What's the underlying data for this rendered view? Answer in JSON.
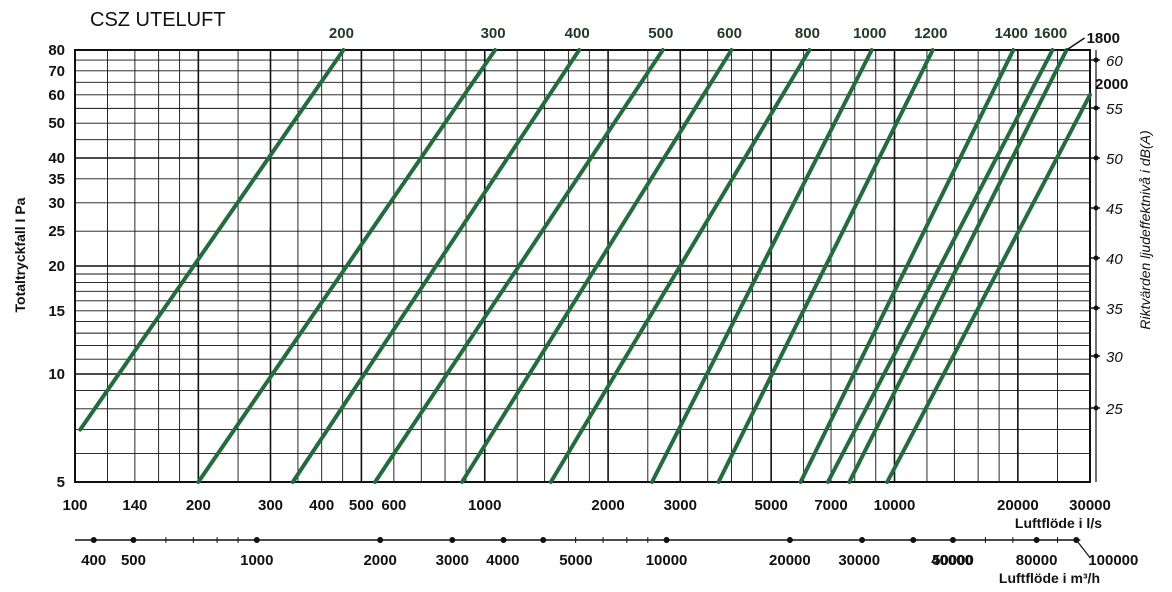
{
  "chart_data": {
    "type": "line",
    "title": "CSZ UTELUFT",
    "xlabel": "Luftflöde i l/s",
    "ylabel": "Totaltryckfall I Pa",
    "y2label": "Riktvärden ljudeffektnivå i dB(A)",
    "x2label": "Luftflöde i m³/h",
    "xscale": "log",
    "yscale": "log",
    "xlim": [
      100,
      30000
    ],
    "ylim": [
      5,
      80
    ],
    "grid": true,
    "x_ticks": [
      "100",
      "140",
      "200",
      "300",
      "400",
      "500",
      "600",
      "1000",
      "2000",
      "3000",
      "5000",
      "7000",
      "10000",
      "20000",
      "30000"
    ],
    "y_ticks": [
      "5",
      "10",
      "15",
      "20",
      "25",
      "30",
      "35",
      "40",
      "50",
      "60",
      "70",
      "80"
    ],
    "x2_ticks": [
      "400",
      "500",
      "1000",
      "2000",
      "3000",
      "4000",
      "5000",
      "10000",
      "20000",
      "30000",
      "40000",
      "50000",
      "80000",
      "100000"
    ],
    "db_ticks": [
      "60",
      "55",
      "50",
      "45",
      "40",
      "35",
      "30",
      "25"
    ],
    "line_color": "#1f6e3c",
    "series": [
      {
        "name": "200",
        "points": [
          [
            103,
            7
          ],
          [
            452,
            80
          ]
        ]
      },
      {
        "name": "300",
        "points": [
          [
            200,
            5
          ],
          [
            1060,
            80
          ]
        ]
      },
      {
        "name": "400",
        "points": [
          [
            340,
            5
          ],
          [
            1700,
            80
          ]
        ]
      },
      {
        "name": "500",
        "points": [
          [
            540,
            5
          ],
          [
            2720,
            80
          ]
        ]
      },
      {
        "name": "600",
        "points": [
          [
            880,
            5
          ],
          [
            4000,
            80
          ]
        ]
      },
      {
        "name": "800",
        "points": [
          [
            1450,
            5
          ],
          [
            6200,
            80
          ]
        ]
      },
      {
        "name": "1000",
        "points": [
          [
            2560,
            5
          ],
          [
            8800,
            80
          ]
        ]
      },
      {
        "name": "1200",
        "points": [
          [
            3720,
            5
          ],
          [
            12400,
            80
          ]
        ]
      },
      {
        "name": "1400",
        "points": [
          [
            5900,
            5
          ],
          [
            19500,
            80
          ]
        ]
      },
      {
        "name": "1600",
        "points": [
          [
            6880,
            5
          ],
          [
            24300,
            80
          ]
        ]
      },
      {
        "name": "1800",
        "points": [
          [
            7760,
            5
          ],
          [
            26300,
            80
          ]
        ]
      },
      {
        "name": "2000",
        "points": [
          [
            9600,
            5
          ],
          [
            30000,
            60
          ]
        ]
      }
    ]
  }
}
